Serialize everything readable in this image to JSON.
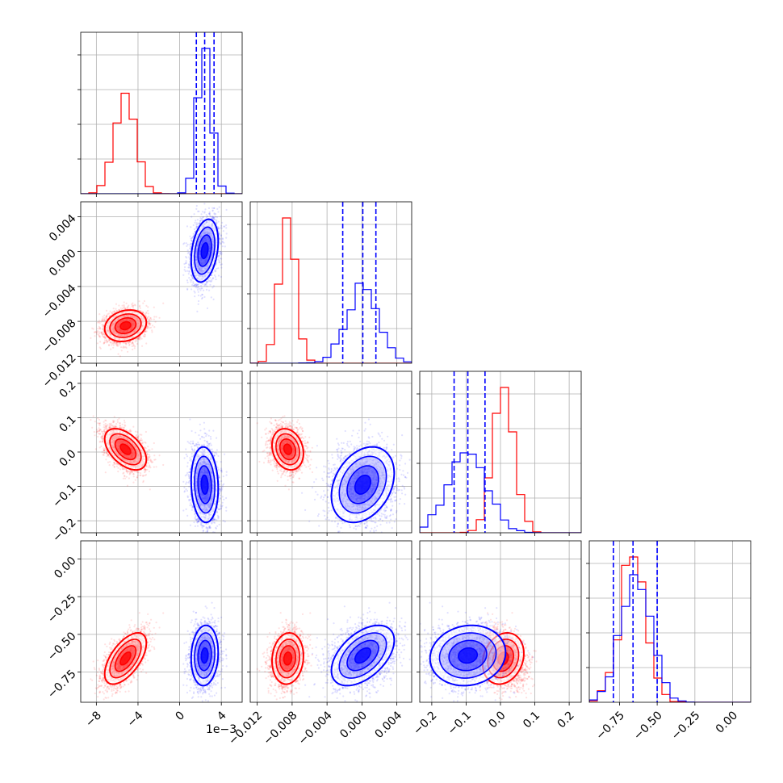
{
  "offset_label": "1e−3",
  "chart_data": {
    "type": "corner",
    "grid": true,
    "colors": {
      "a": "#ff0000",
      "b": "#0000ff"
    },
    "series": [
      {
        "key": "a",
        "color": "#ff0000",
        "means": [
          -5.2,
          -0.0085,
          0.008,
          -0.66
        ],
        "sds": [
          1.0,
          0.0009,
          0.03,
          0.085
        ],
        "corr": [
          [
            1,
            0.2,
            -0.5,
            0.6
          ],
          [
            0.2,
            1,
            -0.2,
            0.1
          ],
          [
            -0.5,
            -0.2,
            1,
            0.2
          ],
          [
            0.6,
            0.1,
            0.2,
            1
          ]
        ]
      },
      {
        "key": "b",
        "color": "#0000ff",
        "means": [
          2.4,
          0.0001,
          -0.095,
          -0.64
        ],
        "sds": [
          0.65,
          0.0018,
          0.055,
          0.1
        ],
        "corr": [
          [
            1,
            0.3,
            -0.1,
            0.1
          ],
          [
            0.3,
            1,
            0.3,
            0.5
          ],
          [
            -0.1,
            0.3,
            1,
            0.1
          ],
          [
            0.1,
            0.5,
            0.1,
            1
          ]
        ]
      }
    ],
    "quantile_lines": [
      [
        1.6,
        2.4,
        3.3
      ],
      [
        -0.0022,
        0.0001,
        0.0016
      ],
      [
        -0.135,
        -0.095,
        -0.045
      ],
      [
        -0.79,
        -0.66,
        -0.5
      ]
    ],
    "variables": [
      {
        "range": [
          -9.5,
          6
        ],
        "ticks": [
          -8,
          -4,
          0,
          4
        ],
        "tick_labels": [
          "−8",
          "−4",
          "0",
          "4"
        ]
      },
      {
        "range": [
          -0.0128,
          0.0057
        ],
        "ticks": [
          -0.012,
          -0.008,
          -0.004,
          0.0,
          0.004
        ],
        "tick_labels": [
          "−0.012",
          "−0.008",
          "−0.004",
          "0.000",
          "0.004"
        ]
      },
      {
        "range": [
          -0.235,
          0.235
        ],
        "ticks": [
          -0.2,
          -0.1,
          0.0,
          0.1,
          0.2
        ],
        "tick_labels": [
          "−0.2",
          "−0.1",
          "0.0",
          "0.1",
          "0.2"
        ]
      },
      {
        "range": [
          -0.95,
          0.12
        ],
        "ticks": [
          -0.75,
          -0.5,
          -0.25,
          0.0
        ],
        "tick_labels": [
          "−0.75",
          "−0.50",
          "−0.25",
          "0.00"
        ]
      }
    ]
  }
}
